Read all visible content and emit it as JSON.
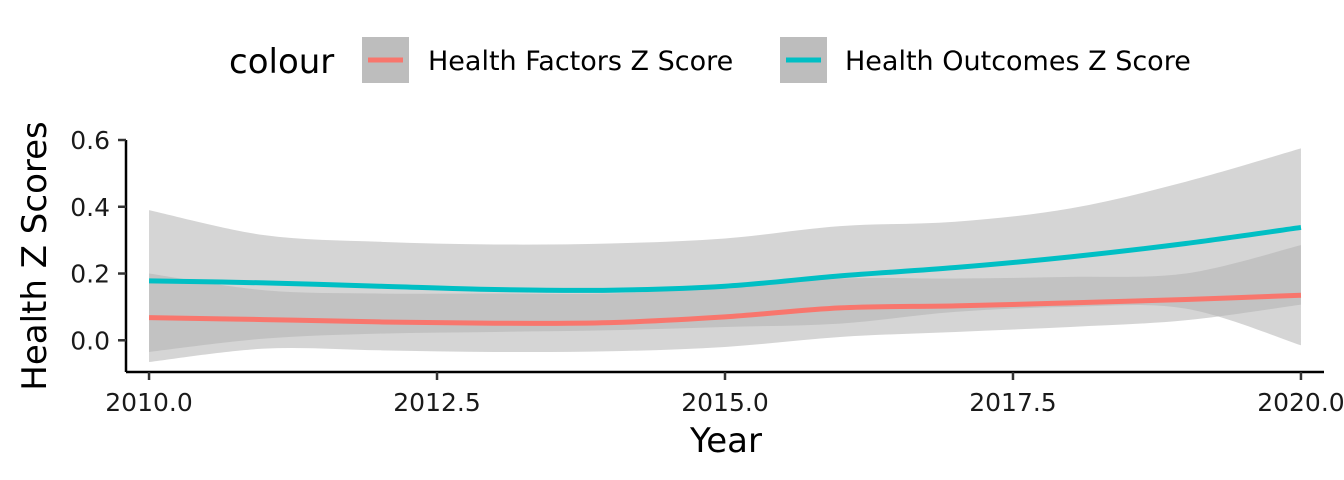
{
  "chart_data": {
    "type": "line",
    "xlabel": "Year",
    "ylabel": "Health Z Scores",
    "xlim": [
      2009.8,
      2020.2
    ],
    "ylim": [
      -0.095,
      0.6
    ],
    "xticks": [
      2010,
      2012.5,
      2015,
      2017.5,
      2020
    ],
    "xtick_labels": [
      "2010.0",
      "2012.5",
      "2015.0",
      "2017.5",
      "2020.0"
    ],
    "yticks": [
      0.0,
      0.2,
      0.4,
      0.6
    ],
    "ytick_labels": [
      "0.0",
      "0.2",
      "0.4",
      "0.6"
    ],
    "grid": false,
    "legend": {
      "title": "colour",
      "position": "top"
    },
    "ribbon_color": "#b3b3b3",
    "series": [
      {
        "name": "Health Factors Z Score",
        "color": "#f8766d",
        "x": [
          2010,
          2011,
          2012,
          2013,
          2014,
          2015,
          2016,
          2017,
          2018,
          2019,
          2020
        ],
        "y": [
          0.068,
          0.062,
          0.055,
          0.051,
          0.053,
          0.07,
          0.097,
          0.103,
          0.112,
          0.122,
          0.135
        ],
        "lower": [
          -0.065,
          -0.025,
          -0.03,
          -0.035,
          -0.033,
          -0.02,
          0.01,
          0.025,
          0.04,
          0.06,
          0.107
        ],
        "upper": [
          0.2,
          0.15,
          0.14,
          0.14,
          0.14,
          0.16,
          0.185,
          0.185,
          0.19,
          0.2,
          0.285
        ]
      },
      {
        "name": "Health Outcomes Z Score",
        "color": "#00bfc4",
        "x": [
          2010,
          2011,
          2012,
          2013,
          2014,
          2015,
          2016,
          2017,
          2018,
          2019,
          2020
        ],
        "y": [
          0.178,
          0.172,
          0.162,
          0.152,
          0.15,
          0.162,
          0.193,
          0.218,
          0.25,
          0.29,
          0.338
        ],
        "lower": [
          -0.035,
          0.005,
          0.02,
          0.025,
          0.03,
          0.04,
          0.05,
          0.085,
          0.1,
          0.095,
          -0.015
        ],
        "upper": [
          0.39,
          0.315,
          0.295,
          0.287,
          0.29,
          0.305,
          0.342,
          0.355,
          0.395,
          0.475,
          0.575
        ]
      }
    ]
  }
}
